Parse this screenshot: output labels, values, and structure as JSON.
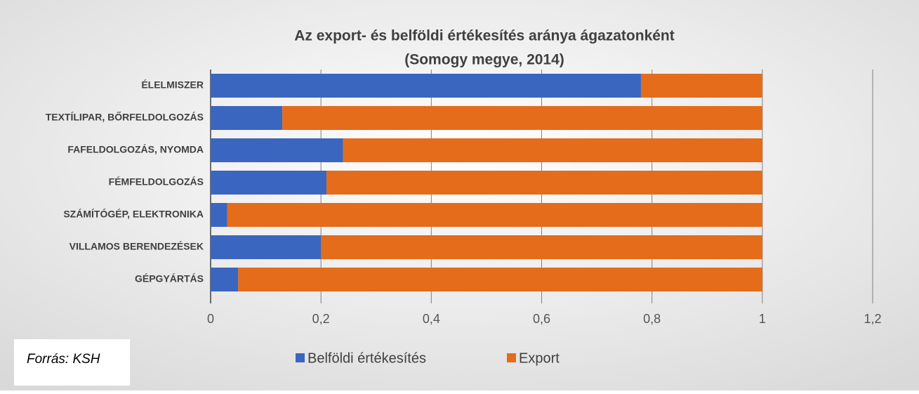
{
  "chart_data": {
    "type": "stacked_bar_horizontal",
    "title": [
      "Az export- és belföldi értékesítés aránya ágazatonként",
      "(Somogy megye, 2014)"
    ],
    "source": "Forrás: KSH",
    "categories": [
      "ÉLELMISZER",
      "TEXTÍLIPAR, BŐRFELDOLGOZÁS",
      "FAFELDOLGOZÁS, NYOMDA",
      "FÉMFELDOLGOZÁS",
      "SZÁMÍTÓGÉP, ELEKTRONIKA",
      "VILLAMOS BERENDEZÉSEK",
      "GÉPGYÁRTÁS"
    ],
    "series": [
      {
        "name": "Belföldi értékesítés",
        "color": "#3a66c0",
        "values": [
          0.78,
          0.13,
          0.24,
          0.21,
          0.03,
          0.2,
          0.05
        ]
      },
      {
        "name": "Export",
        "color": "#e46c1a",
        "values": [
          0.22,
          0.87,
          0.76,
          0.79,
          0.97,
          0.8,
          0.95
        ]
      }
    ],
    "xlim": [
      0,
      1.2
    ],
    "xticks": [
      0,
      {
        "value": 0.2,
        "label": "0,2"
      },
      {
        "value": 0.4,
        "label": "0,4"
      },
      {
        "value": 0.6,
        "label": "0,6"
      },
      {
        "value": 0.8,
        "label": "0,8"
      },
      1,
      {
        "value": 1.2,
        "label": "1,2"
      }
    ],
    "grid": true,
    "legend": "bottom"
  }
}
